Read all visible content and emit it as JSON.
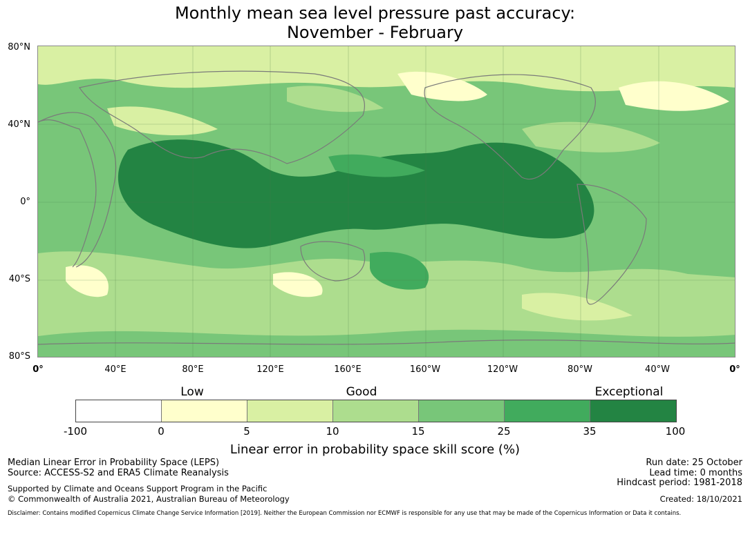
{
  "title": {
    "line1": "Monthly mean sea level pressure past accuracy:",
    "line2": "November - February"
  },
  "map": {
    "lat_ticks": [
      "80°N",
      "40°N",
      "0°",
      "40°S",
      "80°S"
    ],
    "lon_ticks": [
      "0°",
      "40°E",
      "80°E",
      "120°E",
      "160°E",
      "160°W",
      "120°W",
      "80°W",
      "40°W",
      "0°"
    ]
  },
  "legend": {
    "categories": {
      "low": "Low",
      "good": "Good",
      "exceptional": "Exceptional"
    },
    "colors": [
      "#ffffff",
      "#ffffcc",
      "#d9f0a3",
      "#addd8e",
      "#78c679",
      "#41ab5d",
      "#238443"
    ],
    "ticks": [
      "-100",
      "0",
      "5",
      "10",
      "15",
      "25",
      "35",
      "100"
    ],
    "xlabel": "Linear error in probability space skill score (%)"
  },
  "footer": {
    "method": "Median Linear Error in Probability Space (LEPS)",
    "source": "Source: ACCESS-S2 and ERA5 Climate Reanalysis",
    "support": "Supported by Climate and Oceans Support Program in the Pacific",
    "copyright": "© Commonwealth of Australia 2021, Australian Bureau of Meteorology",
    "run_date": "Run date: 25 October",
    "lead_time": "Lead time: 0 months",
    "hindcast": "Hindcast period: 1981-2018",
    "created": "Created: 18/10/2021",
    "disclaimer": "Disclaimer: Contains modified Copernicus Climate Change Service Information [2019]. Neither the European Commission nor ECMWF is responsible for any use that may be made of the Copernicus Information or Data it contains."
  }
}
